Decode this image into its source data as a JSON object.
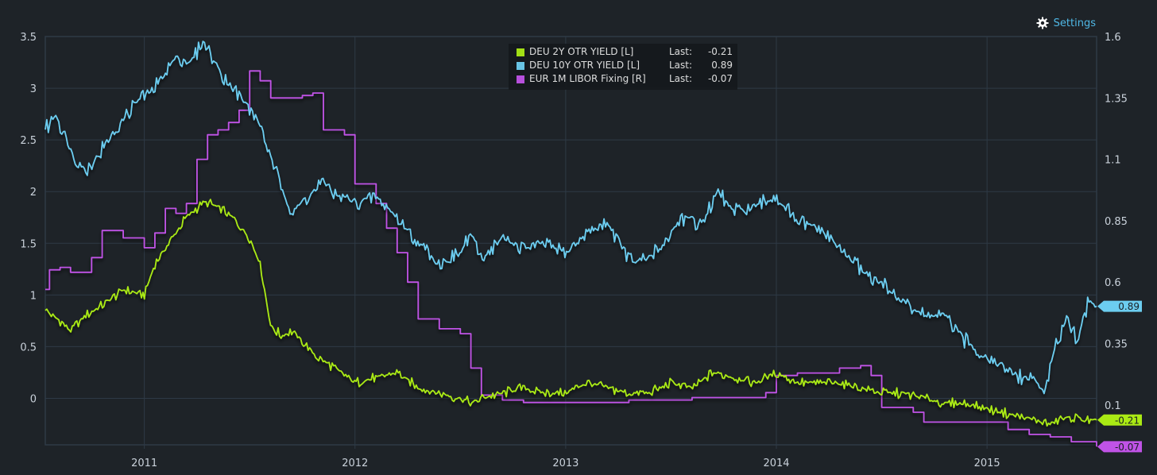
{
  "settings": {
    "label": "Settings",
    "icon": "gear-icon"
  },
  "legend": {
    "last_label": "Last:",
    "items": [
      {
        "name": "DEU 2Y OTR YIELD [L]",
        "last": "-0.21",
        "color": "#aaea14"
      },
      {
        "name": "DEU 10Y OTR YIELD [L]",
        "last": "0.89",
        "color": "#6ccdf0"
      },
      {
        "name": "EUR 1M LIBOR Fixing [R]",
        "last": "-0.07",
        "color": "#c053e6"
      }
    ]
  },
  "chart_data": {
    "type": "line",
    "title": "",
    "xlabel": "",
    "ylabel": "",
    "x_tick_labels": [
      "2011",
      "2012",
      "2013",
      "2014",
      "2015"
    ],
    "xlim": [
      2010.53,
      2015.52
    ],
    "y_left": {
      "lim": [
        -0.45,
        3.5
      ],
      "ticks": [
        "3.5",
        "3",
        "2.5",
        "2",
        "1.5",
        "1",
        "0.5",
        "0"
      ]
    },
    "y_right": {
      "lim": [
        -0.0625,
        1.6
      ],
      "ticks": [
        "1.6",
        "1.35",
        "1.1",
        "0.85",
        "0.6",
        "0.35",
        "0.1"
      ]
    },
    "grid": true,
    "legend_position": "top-center",
    "colors": {
      "background": "#1e2328",
      "grid": "#2e3a46",
      "axis_text": "#c9d1da"
    },
    "end_labels": [
      {
        "series": "DEU 10Y OTR YIELD [L]",
        "text": "0.89"
      },
      {
        "series": "DEU 2Y OTR YIELD [L]",
        "text": "-0.21"
      },
      {
        "series": "EUR 1M LIBOR Fixing [R]",
        "text": "-0.07"
      }
    ],
    "series": [
      {
        "name": "DEU 2Y OTR YIELD [L]",
        "axis": "left",
        "color": "#aaea14",
        "x": [
          2010.53,
          2010.6,
          2010.65,
          2010.72,
          2010.8,
          2010.9,
          2011.0,
          2011.05,
          2011.1,
          2011.15,
          2011.2,
          2011.28,
          2011.35,
          2011.42,
          2011.5,
          2011.55,
          2011.6,
          2011.65,
          2011.7,
          2011.75,
          2011.82,
          2011.9,
          2012.0,
          2012.1,
          2012.2,
          2012.3,
          2012.4,
          2012.5,
          2012.55,
          2012.6,
          2012.7,
          2012.8,
          2012.9,
          2013.0,
          2013.1,
          2013.2,
          2013.3,
          2013.4,
          2013.5,
          2013.6,
          2013.7,
          2013.8,
          2013.9,
          2014.0,
          2014.1,
          2014.2,
          2014.3,
          2014.4,
          2014.5,
          2014.6,
          2014.7,
          2014.8,
          2014.9,
          2015.0,
          2015.1,
          2015.2,
          2015.3,
          2015.35,
          2015.42,
          2015.48,
          2015.52
        ],
        "values": [
          0.85,
          0.75,
          0.65,
          0.8,
          0.9,
          1.05,
          1.0,
          1.3,
          1.45,
          1.6,
          1.75,
          1.9,
          1.85,
          1.75,
          1.55,
          1.3,
          0.7,
          0.6,
          0.65,
          0.55,
          0.4,
          0.3,
          0.15,
          0.2,
          0.25,
          0.1,
          0.05,
          0.0,
          -0.05,
          0.0,
          0.05,
          0.1,
          0.05,
          0.05,
          0.15,
          0.1,
          0.05,
          0.05,
          0.15,
          0.1,
          0.25,
          0.2,
          0.15,
          0.25,
          0.15,
          0.15,
          0.15,
          0.1,
          0.05,
          0.05,
          0.0,
          -0.05,
          -0.05,
          -0.1,
          -0.15,
          -0.2,
          -0.25,
          -0.2,
          -0.18,
          -0.22,
          -0.21
        ]
      },
      {
        "name": "DEU 10Y OTR YIELD [L]",
        "axis": "left",
        "color": "#6ccdf0",
        "x": [
          2010.53,
          2010.58,
          2010.65,
          2010.72,
          2010.78,
          2010.85,
          2010.95,
          2011.05,
          2011.15,
          2011.22,
          2011.28,
          2011.35,
          2011.42,
          2011.5,
          2011.55,
          2011.62,
          2011.7,
          2011.78,
          2011.85,
          2011.92,
          2012.0,
          2012.1,
          2012.2,
          2012.3,
          2012.4,
          2012.5,
          2012.55,
          2012.6,
          2012.7,
          2012.8,
          2012.9,
          2013.0,
          2013.1,
          2013.2,
          2013.3,
          2013.35,
          2013.45,
          2013.55,
          2013.65,
          2013.72,
          2013.8,
          2013.9,
          2014.0,
          2014.1,
          2014.2,
          2014.3,
          2014.4,
          2014.5,
          2014.6,
          2014.7,
          2014.8,
          2014.9,
          2015.0,
          2015.08,
          2015.15,
          2015.22,
          2015.27,
          2015.33,
          2015.38,
          2015.43,
          2015.48,
          2015.52
        ],
        "values": [
          2.6,
          2.75,
          2.4,
          2.2,
          2.35,
          2.55,
          2.85,
          3.0,
          3.3,
          3.25,
          3.45,
          3.2,
          3.0,
          2.8,
          2.65,
          2.2,
          1.8,
          1.95,
          2.1,
          1.95,
          1.9,
          1.95,
          1.75,
          1.5,
          1.3,
          1.4,
          1.6,
          1.35,
          1.55,
          1.45,
          1.5,
          1.4,
          1.6,
          1.7,
          1.35,
          1.3,
          1.45,
          1.75,
          1.7,
          2.0,
          1.8,
          1.85,
          1.95,
          1.7,
          1.65,
          1.45,
          1.25,
          1.1,
          0.95,
          0.8,
          0.8,
          0.55,
          0.4,
          0.3,
          0.2,
          0.2,
          0.05,
          0.55,
          0.8,
          0.55,
          0.95,
          0.89
        ]
      },
      {
        "name": "EUR 1M LIBOR Fixing [R]",
        "axis": "right",
        "color": "#c053e6",
        "x": [
          2010.53,
          2010.55,
          2010.6,
          2010.65,
          2010.72,
          2010.75,
          2010.8,
          2010.85,
          2010.9,
          2010.95,
          2011.0,
          2011.05,
          2011.1,
          2011.15,
          2011.2,
          2011.25,
          2011.3,
          2011.35,
          2011.4,
          2011.45,
          2011.5,
          2011.55,
          2011.6,
          2011.65,
          2011.7,
          2011.75,
          2011.8,
          2011.85,
          2011.9,
          2011.95,
          2012.0,
          2012.1,
          2012.15,
          2012.2,
          2012.25,
          2012.3,
          2012.4,
          2012.5,
          2012.52,
          2012.55,
          2012.6,
          2012.7,
          2012.8,
          2012.9,
          2013.0,
          2013.1,
          2013.2,
          2013.3,
          2013.4,
          2013.5,
          2013.6,
          2013.7,
          2013.8,
          2013.9,
          2013.95,
          2014.0,
          2014.1,
          2014.2,
          2014.3,
          2014.4,
          2014.42,
          2014.45,
          2014.5,
          2014.6,
          2014.65,
          2014.7,
          2014.8,
          2014.9,
          2015.0,
          2015.1,
          2015.2,
          2015.3,
          2015.4,
          2015.52
        ],
        "values": [
          0.57,
          0.65,
          0.66,
          0.64,
          0.64,
          0.7,
          0.81,
          0.81,
          0.78,
          0.78,
          0.74,
          0.8,
          0.9,
          0.88,
          0.92,
          1.1,
          1.2,
          1.22,
          1.25,
          1.3,
          1.46,
          1.42,
          1.35,
          1.35,
          1.35,
          1.36,
          1.37,
          1.22,
          1.22,
          1.2,
          1.0,
          0.92,
          0.82,
          0.72,
          0.6,
          0.45,
          0.41,
          0.39,
          0.39,
          0.25,
          0.14,
          0.12,
          0.11,
          0.11,
          0.11,
          0.11,
          0.11,
          0.12,
          0.12,
          0.12,
          0.13,
          0.13,
          0.13,
          0.13,
          0.15,
          0.22,
          0.23,
          0.23,
          0.25,
          0.26,
          0.26,
          0.22,
          0.09,
          0.09,
          0.07,
          0.03,
          0.03,
          0.03,
          0.03,
          0.0,
          -0.02,
          -0.03,
          -0.05,
          -0.07
        ]
      }
    ]
  }
}
